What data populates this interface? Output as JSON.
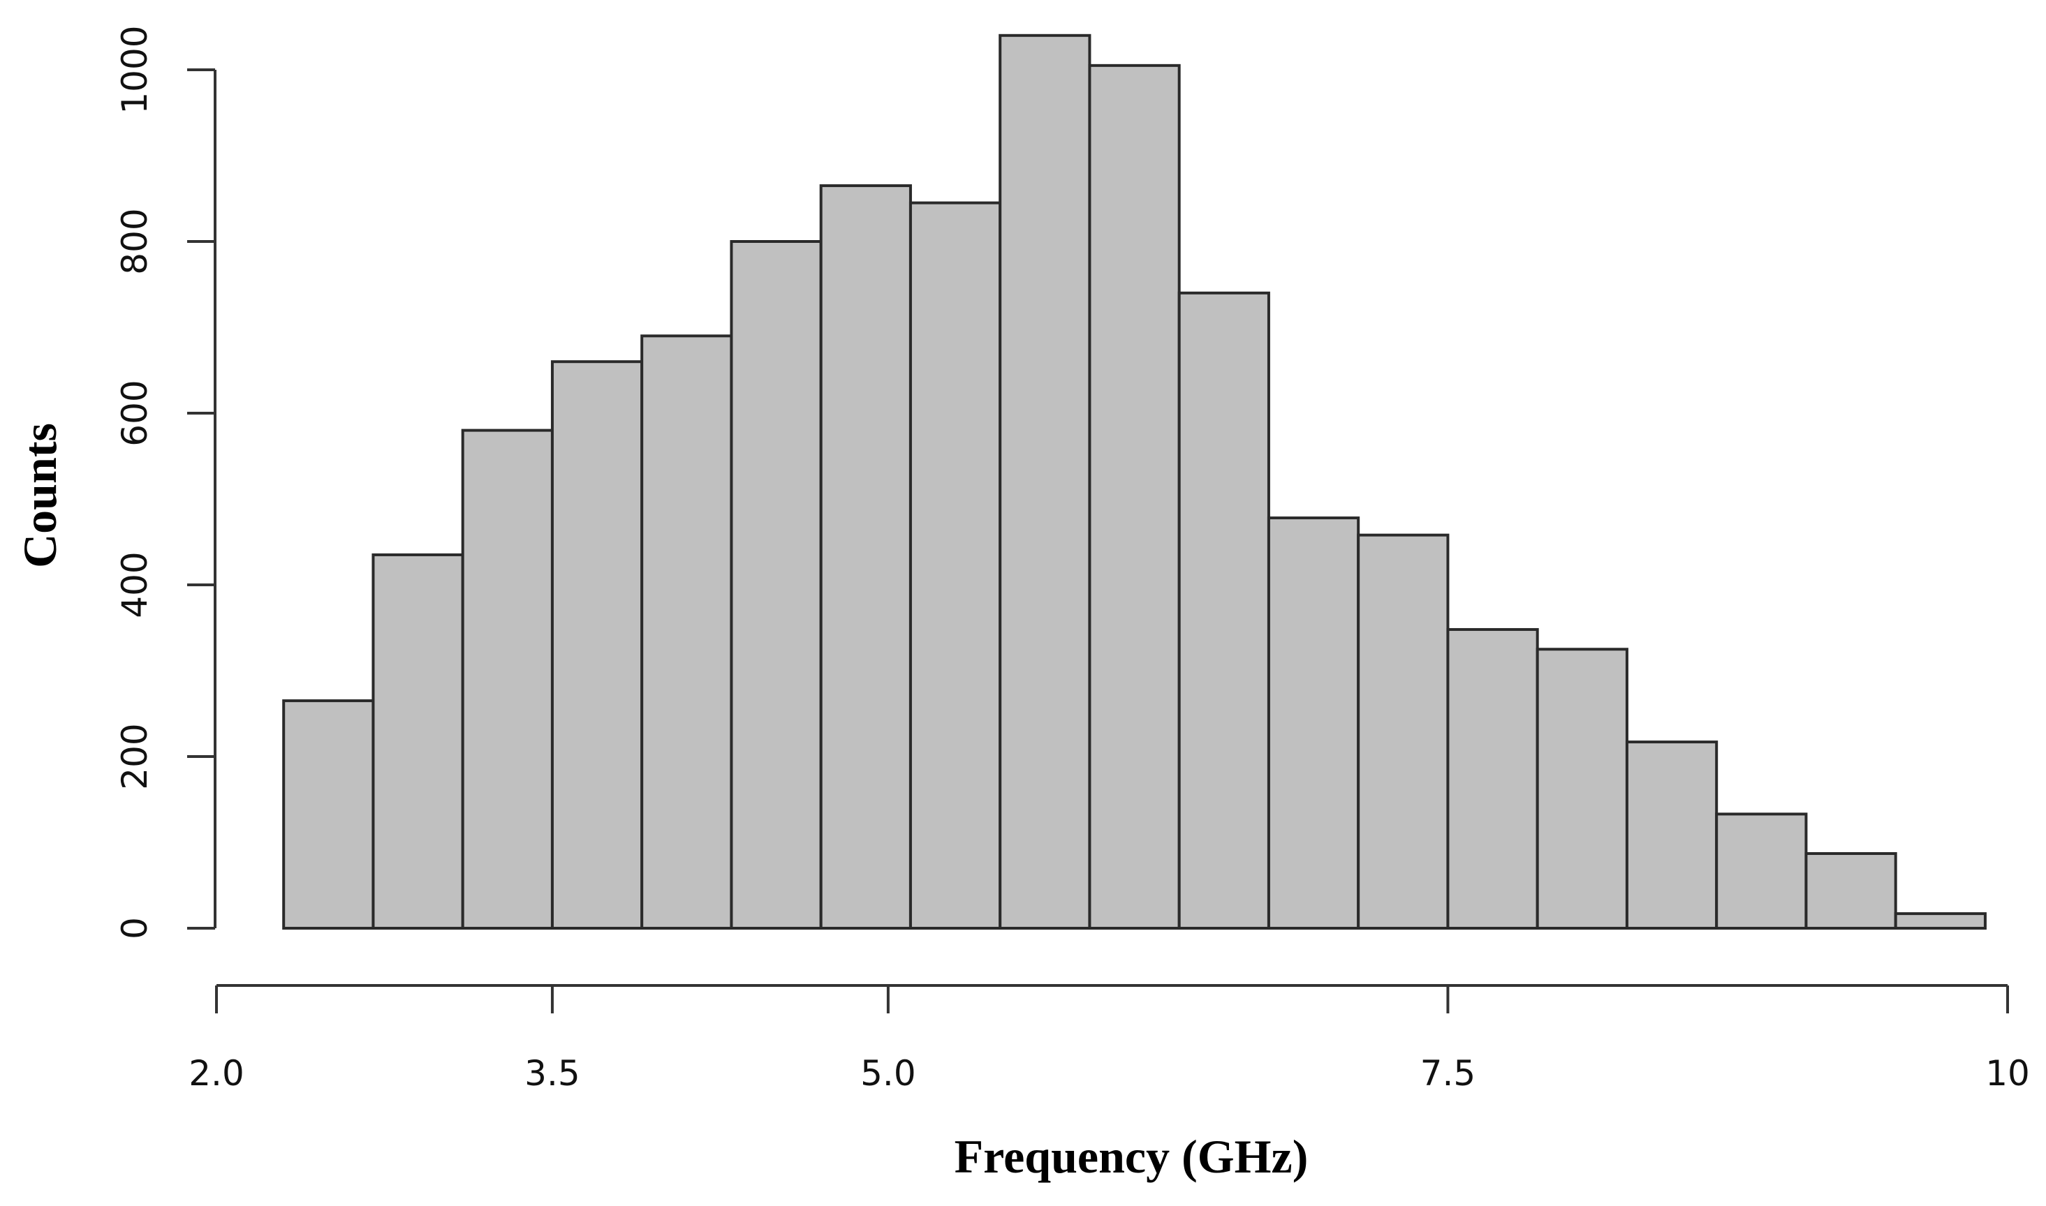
{
  "chart_data": {
    "type": "bar",
    "subtype": "histogram",
    "title": "",
    "xlabel": "Frequency (GHz)",
    "ylabel": "Counts",
    "bar_color": "#c0c0c0",
    "edge_color": "#2a2a2a",
    "grid": false,
    "legend": "none",
    "xlim": [
      2.0,
      10.0
    ],
    "ylim": [
      0,
      1000
    ],
    "x_ticks": [
      2.0,
      3.5,
      5.0,
      7.5,
      10.0
    ],
    "x_tick_labels": [
      "2.0",
      "3.5",
      "5.0",
      "7.5",
      "10"
    ],
    "y_ticks": [
      0,
      200,
      400,
      600,
      800,
      1000
    ],
    "y_tick_labels": [
      "0",
      "200",
      "400",
      "600",
      "800",
      "1000"
    ],
    "bins": [
      {
        "x_start": 2.3,
        "x_end": 2.7,
        "count": 265
      },
      {
        "x_start": 2.7,
        "x_end": 3.1,
        "count": 435
      },
      {
        "x_start": 3.1,
        "x_end": 3.5,
        "count": 580
      },
      {
        "x_start": 3.5,
        "x_end": 3.9,
        "count": 660
      },
      {
        "x_start": 3.9,
        "x_end": 4.3,
        "count": 690
      },
      {
        "x_start": 4.3,
        "x_end": 4.7,
        "count": 800
      },
      {
        "x_start": 4.7,
        "x_end": 5.1,
        "count": 865
      },
      {
        "x_start": 5.1,
        "x_end": 5.5,
        "count": 845
      },
      {
        "x_start": 5.5,
        "x_end": 5.9,
        "count": 1040
      },
      {
        "x_start": 5.9,
        "x_end": 6.3,
        "count": 1005
      },
      {
        "x_start": 6.3,
        "x_end": 6.7,
        "count": 740
      },
      {
        "x_start": 6.7,
        "x_end": 7.1,
        "count": 478
      },
      {
        "x_start": 7.1,
        "x_end": 7.5,
        "count": 458
      },
      {
        "x_start": 7.5,
        "x_end": 7.9,
        "count": 348
      },
      {
        "x_start": 7.9,
        "x_end": 8.3,
        "count": 325
      },
      {
        "x_start": 8.3,
        "x_end": 8.7,
        "count": 217
      },
      {
        "x_start": 8.7,
        "x_end": 9.1,
        "count": 133
      },
      {
        "x_start": 9.1,
        "x_end": 9.5,
        "count": 87
      },
      {
        "x_start": 9.5,
        "x_end": 9.9,
        "count": 17
      }
    ]
  }
}
